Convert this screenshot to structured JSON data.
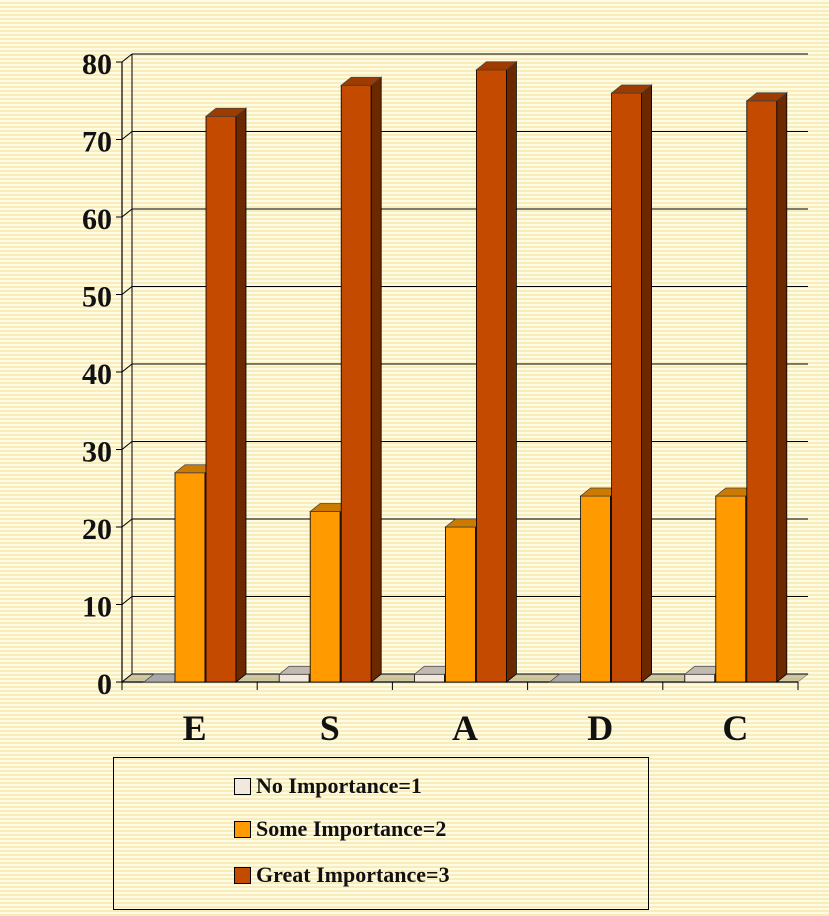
{
  "chart_data": {
    "type": "bar",
    "title": "",
    "xlabel": "",
    "ylabel": "",
    "categories": [
      "E",
      "S",
      "A",
      "D",
      "C"
    ],
    "series": [
      {
        "name": "No Importance=1",
        "values": [
          0,
          1,
          1,
          0,
          1
        ],
        "color": "#f2e8dc"
      },
      {
        "name": "Some Importance=2",
        "values": [
          27,
          22,
          20,
          24,
          24
        ],
        "color": "#ff9a00"
      },
      {
        "name": "Great Importance=3",
        "values": [
          73,
          77,
          79,
          76,
          75
        ],
        "color": "#c44a00"
      }
    ],
    "ylim": [
      0,
      80
    ],
    "yticks": [
      "0",
      "10",
      "20",
      "30",
      "40",
      "50",
      "60",
      "70",
      "80"
    ],
    "grid": true,
    "legend_position": "bottom",
    "three_d": true
  }
}
